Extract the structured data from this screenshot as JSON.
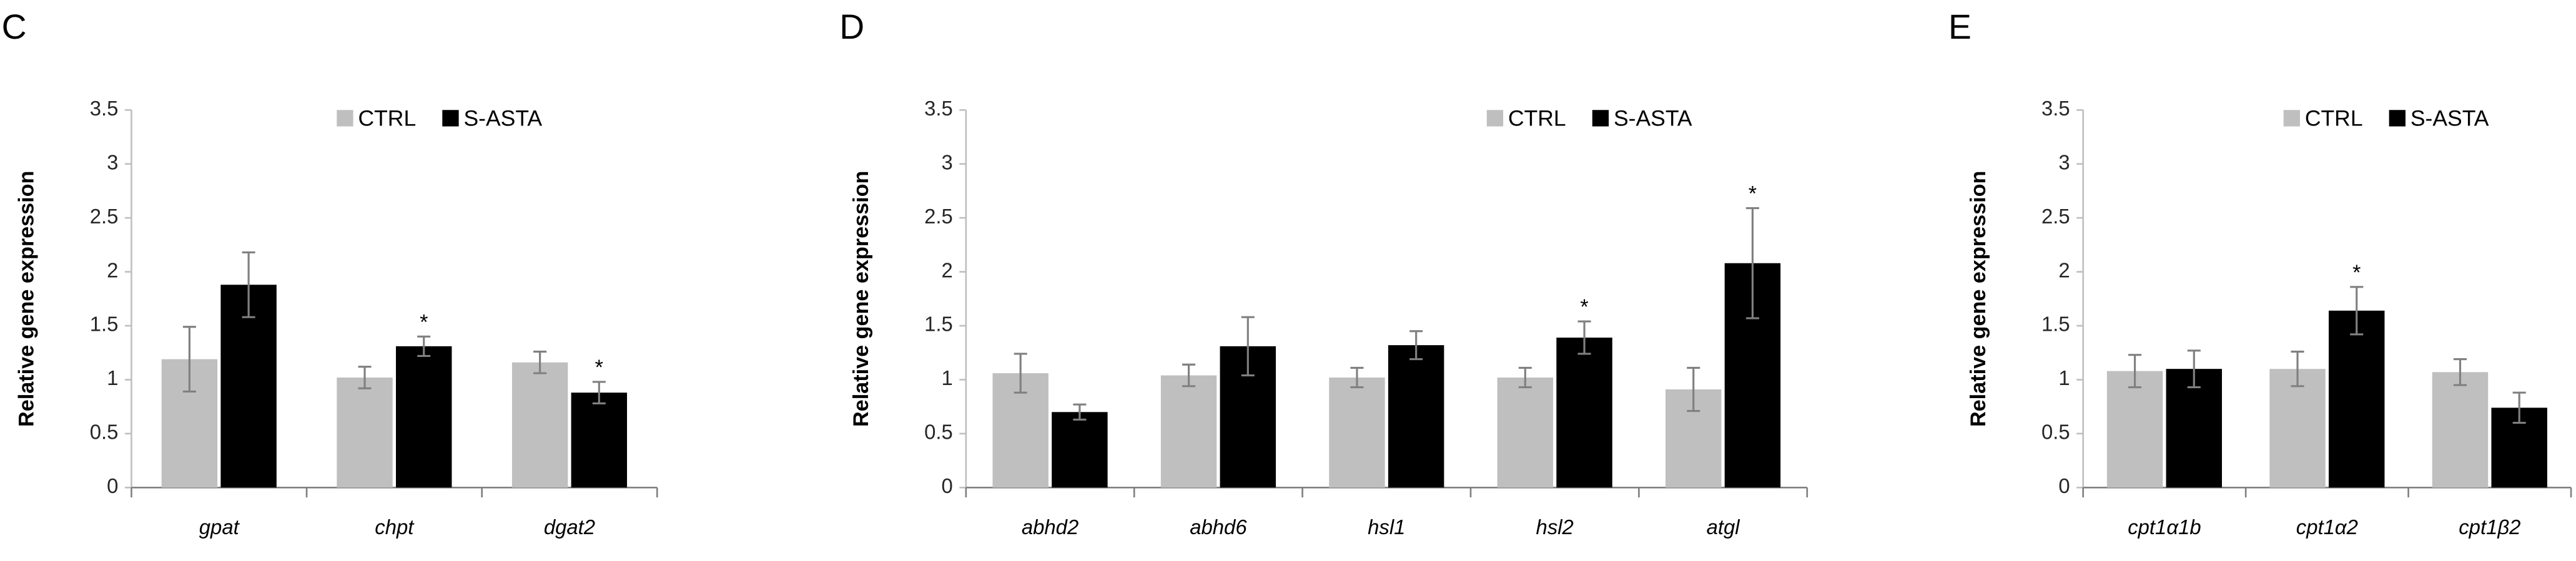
{
  "chart_data": [
    {
      "type": "bar",
      "panel_label": "C",
      "y_label": "Relative gene expression",
      "categories": [
        "gpat",
        "chpt",
        "dgat2"
      ],
      "series": [
        {
          "name": "CTRL",
          "color": "#bfbfbf",
          "values": [
            1.19,
            1.02,
            1.16
          ],
          "errors": [
            0.3,
            0.1,
            0.1
          ],
          "significance": [
            null,
            null,
            null
          ]
        },
        {
          "name": "S-ASTA",
          "color": "#000000",
          "values": [
            1.88,
            1.31,
            0.88
          ],
          "errors": [
            0.3,
            0.09,
            0.1
          ],
          "significance": [
            null,
            "*",
            "*"
          ]
        }
      ],
      "ylim": [
        0,
        3.5
      ],
      "yticks": [
        0,
        0.5,
        1,
        1.5,
        2,
        2.5,
        3,
        3.5
      ],
      "error_color": "#808080"
    },
    {
      "type": "bar",
      "panel_label": "D",
      "y_label": "Relative gene expression",
      "categories": [
        "abhd2",
        "abhd6",
        "hsl1",
        "hsl2",
        "atgl"
      ],
      "series": [
        {
          "name": "CTRL",
          "color": "#bfbfbf",
          "values": [
            1.06,
            1.04,
            1.02,
            1.02,
            0.91
          ],
          "errors": [
            0.18,
            0.1,
            0.09,
            0.09,
            0.2
          ],
          "significance": [
            null,
            null,
            null,
            null,
            null
          ]
        },
        {
          "name": "S-ASTA",
          "color": "#000000",
          "values": [
            0.7,
            1.31,
            1.32,
            1.39,
            2.08
          ],
          "errors": [
            0.07,
            0.27,
            0.13,
            0.15,
            0.51
          ],
          "significance": [
            null,
            null,
            null,
            "*",
            "*"
          ]
        }
      ],
      "ylim": [
        0,
        3.5
      ],
      "yticks": [
        0,
        0.5,
        1,
        1.5,
        2,
        2.5,
        3,
        3.5
      ],
      "error_color": "#808080"
    },
    {
      "type": "bar",
      "panel_label": "E",
      "y_label": "Relative gene expression",
      "categories": [
        "cpt1α1b",
        "cpt1α2",
        "cpt1β2"
      ],
      "series": [
        {
          "name": "CTRL",
          "color": "#bfbfbf",
          "values": [
            1.08,
            1.1,
            1.07
          ],
          "errors": [
            0.15,
            0.16,
            0.12
          ],
          "significance": [
            null,
            null,
            null
          ]
        },
        {
          "name": "S-ASTA",
          "color": "#000000",
          "values": [
            1.1,
            1.64,
            0.74
          ],
          "errors": [
            0.17,
            0.22,
            0.14
          ],
          "significance": [
            null,
            "*",
            null
          ]
        }
      ],
      "ylim": [
        0,
        3.5
      ],
      "yticks": [
        0,
        0.5,
        1,
        1.5,
        2,
        2.5,
        3,
        3.5
      ],
      "error_color": "#808080"
    }
  ]
}
